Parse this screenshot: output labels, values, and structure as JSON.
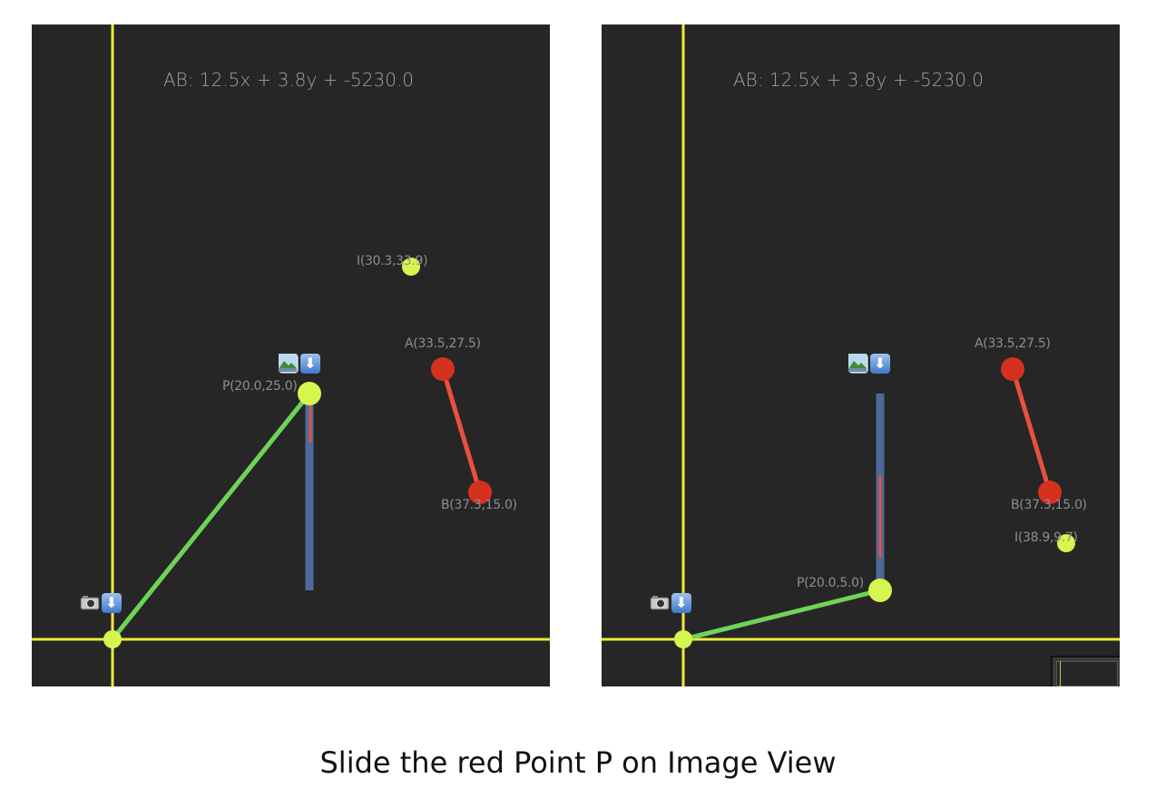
{
  "caption": "Slide the red Point P on Image View",
  "colors": {
    "background": "#262626",
    "axis": "#f2e93b",
    "point_yellow": "#d7f54f",
    "point_red": "#d6301f",
    "segment_red": "#e8503f",
    "segment_green": "#6fd35a",
    "projection_bar": "#4b6a9a",
    "label_text": "#8e8e8e"
  },
  "icons": {
    "camera": "camera-icon",
    "photo": "photo-icon",
    "download": "download-arrow-icon"
  },
  "panels": [
    {
      "equation": "AB: 12.5x + 3.8y + -5230.0",
      "point_p": {
        "label": "P(20.0,25.0)",
        "x": 20.0,
        "y": 25.0
      },
      "point_a": {
        "label": "A(33.5,27.5)",
        "x": 33.5,
        "y": 27.5
      },
      "point_b": {
        "label": "B(37.3,15.0)",
        "x": 37.3,
        "y": 15.0
      },
      "point_i": {
        "label": "I(30.3,33.9)"
      }
    },
    {
      "equation": "AB: 12.5x + 3.8y + -5230.0",
      "point_p": {
        "label": "P(20.0,5.0)",
        "x": 20.0,
        "y": 5.0
      },
      "point_a": {
        "label": "A(33.5,27.5)",
        "x": 33.5,
        "y": 27.5
      },
      "point_b": {
        "label": "B(37.3,15.0)",
        "x": 37.3,
        "y": 15.0
      },
      "point_i": {
        "label": "I(38.9,9.7)"
      }
    }
  ]
}
